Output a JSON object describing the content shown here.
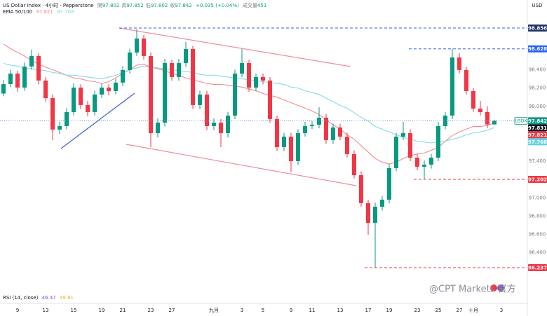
{
  "chart_data": {
    "type": "candlestick",
    "title": "US Dollar Index · 4小时 · Pepperstone",
    "currency": "USD",
    "ohlc_legend": [
      {
        "label": "開",
        "value": 97.802
      },
      {
        "label": "高",
        "value": 97.852
      },
      {
        "label": "低",
        "value": 97.802
      },
      {
        "label": "收",
        "value": 97.842
      }
    ],
    "change": "+0.035 (+0.04%)",
    "volume_label": "成交量",
    "volume": 451,
    "indicator_label": "EMA 50/100",
    "rsi_label": "RSI (14, close)",
    "rsi_values": [
      46.47,
      49.81
    ],
    "rsi_colors": [
      "#7e57c2",
      "#e0b43a"
    ],
    "watermark": "@CPT Markets 官方",
    "categories": [
      null,
      null,
      "9",
      null,
      null,
      null,
      "13",
      null,
      null,
      null,
      "15",
      null,
      null,
      null,
      "19",
      null,
      null,
      "21",
      null,
      null,
      null,
      "23",
      null,
      null,
      "27",
      null,
      null,
      null,
      null,
      null,
      "九月",
      null,
      null,
      null,
      "3",
      null,
      null,
      "5",
      null,
      null,
      null,
      "9",
      null,
      null,
      "11",
      null,
      null,
      null,
      "13",
      null,
      null,
      null,
      "17",
      null,
      null,
      "19",
      null,
      null,
      null,
      "23",
      null,
      null,
      "25",
      null,
      null,
      "27",
      null,
      "十月",
      null,
      null,
      null,
      "3"
    ],
    "series": [
      {
        "name": "USDX",
        "up_color": "#089981",
        "down_color": "#f23645",
        "open": [
          98.14,
          98.243,
          98.358,
          98.205,
          98.435,
          98.55,
          98.282,
          98.09,
          97.746,
          97.784,
          97.937,
          98.205,
          98.014,
          97.937,
          98.129,
          98.205,
          98.167,
          98.259,
          98.397,
          98.588,
          98.741,
          98.55,
          97.707,
          97.822,
          98.473,
          98.32,
          98.473,
          98.626,
          98.014,
          98.129,
          97.784,
          97.822,
          97.707,
          97.899,
          98.358,
          98.473,
          98.205,
          98.32,
          98.282,
          97.861,
          97.554,
          97.669,
          97.401,
          97.707,
          97.784,
          97.799,
          97.876,
          97.631,
          97.769,
          97.669,
          97.478,
          97.248,
          96.942,
          96.727,
          96.903,
          96.98,
          97.325,
          97.669,
          97.707,
          97.439,
          97.34,
          97.363,
          97.439,
          97.784,
          97.899,
          98.534,
          98.397,
          98.167,
          97.975,
          97.937,
          97.802,
          null
        ],
        "high": [
          98.29,
          98.4,
          98.39,
          98.48,
          98.62,
          98.58,
          98.32,
          98.13,
          97.83,
          97.98,
          98.25,
          98.24,
          98.06,
          98.17,
          98.25,
          98.24,
          98.3,
          98.44,
          98.63,
          98.841,
          98.78,
          98.59,
          97.87,
          98.52,
          98.51,
          98.52,
          98.703,
          98.66,
          98.17,
          98.17,
          97.87,
          97.86,
          97.94,
          98.4,
          98.626,
          98.51,
          98.36,
          98.36,
          98.32,
          97.9,
          97.71,
          97.71,
          97.75,
          97.83,
          97.84,
          97.99,
          97.92,
          97.81,
          97.81,
          97.71,
          97.52,
          97.29,
          96.98,
          96.95,
          97.02,
          97.37,
          97.71,
          97.83,
          97.75,
          97.48,
          97.41,
          97.48,
          97.83,
          97.94,
          98.628,
          98.58,
          98.43,
          98.2,
          98.06,
          98,
          97.852,
          null
        ],
        "low": [
          98.11,
          98.21,
          98.16,
          98.17,
          98.4,
          98.24,
          98.05,
          97.631,
          97.7,
          97.75,
          97.9,
          97.97,
          97.89,
          97.9,
          98.09,
          98.12,
          98.13,
          98.22,
          98.36,
          98.55,
          98.51,
          97.554,
          97.66,
          97.78,
          98.28,
          98.28,
          98.43,
          97.97,
          97.97,
          97.74,
          97.74,
          97.554,
          97.66,
          97.86,
          98.32,
          98.16,
          98.17,
          98.24,
          97.82,
          97.51,
          97.51,
          97.286,
          97.36,
          97.67,
          97.75,
          97.76,
          97.59,
          97.59,
          97.63,
          97.44,
          97.21,
          96.9,
          96.597,
          96.237,
          96.86,
          96.94,
          97.29,
          97.63,
          97.4,
          97.3,
          97.202,
          97.32,
          97.4,
          97.75,
          97.86,
          98.36,
          98.13,
          97.94,
          97.9,
          97.76,
          97.802,
          null
        ],
        "close": [
          98.243,
          98.358,
          98.205,
          98.435,
          98.55,
          98.282,
          98.09,
          97.746,
          97.784,
          97.937,
          98.205,
          98.014,
          97.937,
          98.129,
          98.205,
          98.167,
          98.259,
          98.397,
          98.588,
          98.741,
          98.55,
          97.707,
          97.822,
          98.473,
          98.32,
          98.473,
          98.626,
          98.014,
          98.129,
          97.784,
          97.822,
          97.707,
          97.899,
          98.358,
          98.473,
          98.205,
          98.32,
          98.282,
          97.861,
          97.554,
          97.669,
          97.401,
          97.707,
          97.784,
          97.799,
          97.876,
          97.631,
          97.769,
          97.669,
          97.478,
          97.248,
          96.942,
          96.727,
          96.903,
          96.98,
          97.325,
          97.669,
          97.707,
          97.439,
          97.34,
          97.363,
          97.439,
          97.784,
          97.899,
          98.534,
          98.397,
          98.167,
          97.975,
          97.937,
          97.802,
          97.842,
          null
        ]
      },
      {
        "type": "line",
        "color": "#f28a8e",
        "values": [
          98.68,
          98.63,
          98.59,
          98.55,
          98.5,
          98.46,
          98.43,
          98.4,
          98.37,
          98.34,
          98.31,
          98.3,
          98.28,
          98.27,
          98.25,
          98.27,
          98.31,
          98.36,
          98.4,
          98.45,
          98.46,
          98.43,
          98.41,
          98.39,
          98.36,
          98.34,
          98.31,
          98.29,
          98.27,
          98.25,
          98.24,
          98.24,
          98.23,
          98.22,
          98.21,
          98.19,
          98.17,
          98.14,
          98.12,
          98.1,
          98.07,
          98.04,
          98.01,
          97.98,
          97.95,
          97.91,
          97.85,
          97.8,
          97.75,
          97.69,
          97.64,
          97.57,
          97.5,
          97.43,
          97.39,
          97.37,
          97.39,
          97.43,
          97.46,
          97.48,
          97.49,
          97.52,
          97.55,
          97.62,
          97.68,
          97.72,
          97.75,
          97.78,
          97.78,
          97.79,
          97.821,
          null
        ]
      },
      {
        "type": "line",
        "color": "#7fdcea",
        "values": [
          98.47,
          98.45,
          98.44,
          98.42,
          98.41,
          98.4,
          98.39,
          98.37,
          98.36,
          98.34,
          98.34,
          98.33,
          98.32,
          98.31,
          98.3,
          98.32,
          98.34,
          98.37,
          98.4,
          98.42,
          98.44,
          98.43,
          98.42,
          98.41,
          98.4,
          98.39,
          98.38,
          98.37,
          98.35,
          98.34,
          98.34,
          98.33,
          98.32,
          98.31,
          98.3,
          98.29,
          98.28,
          98.27,
          98.26,
          98.25,
          98.24,
          98.21,
          98.2,
          98.17,
          98.15,
          98.13,
          98.09,
          98.05,
          98.01,
          97.98,
          97.93,
          97.88,
          97.84,
          97.78,
          97.75,
          97.72,
          97.69,
          97.66,
          97.64,
          97.62,
          97.61,
          97.6,
          97.61,
          97.62,
          97.64,
          97.66,
          97.69,
          97.71,
          97.72,
          97.74,
          97.768,
          null
        ]
      }
    ],
    "ylim": [
      95.793,
      99.162
    ],
    "yticks": [
      {
        "value": 96.4,
        "label": "96.400"
      },
      {
        "value": 96.6,
        "label": "96.600"
      },
      {
        "value": 96.8,
        "label": "96.800"
      },
      {
        "value": 97,
        "label": "97.000"
      },
      {
        "value": 97.4,
        "label": "97.400"
      },
      {
        "value": 98,
        "label": "98.000"
      },
      {
        "value": 98.2,
        "label": "98.200"
      },
      {
        "value": 98.4,
        "label": "98.400"
      }
    ],
    "grid": false,
    "price_labels": [
      {
        "value": 98.856,
        "color": "#1e3266",
        "line": "dashed",
        "line_color": "#2962ff"
      },
      {
        "value": 98.628,
        "color": "#2962ff",
        "line": "dashed",
        "line_color": "#2962ff"
      },
      {
        "value": 97.842,
        "color": "#089981",
        "line": "dotted",
        "line_color": "#6f8fdc"
      },
      {
        "value": 97.831,
        "color": "#131722"
      },
      {
        "value": 97.821,
        "color": "#f23645"
      },
      {
        "value": 97.768,
        "color": "#5fd3e3"
      },
      {
        "value": 97.202,
        "color": "#f23645",
        "line": "dashed",
        "line_color": "#f23645"
      },
      {
        "value": 96.237,
        "color": "#f23645",
        "line": "dashed",
        "line_color": "#f23645"
      }
    ]
  }
}
